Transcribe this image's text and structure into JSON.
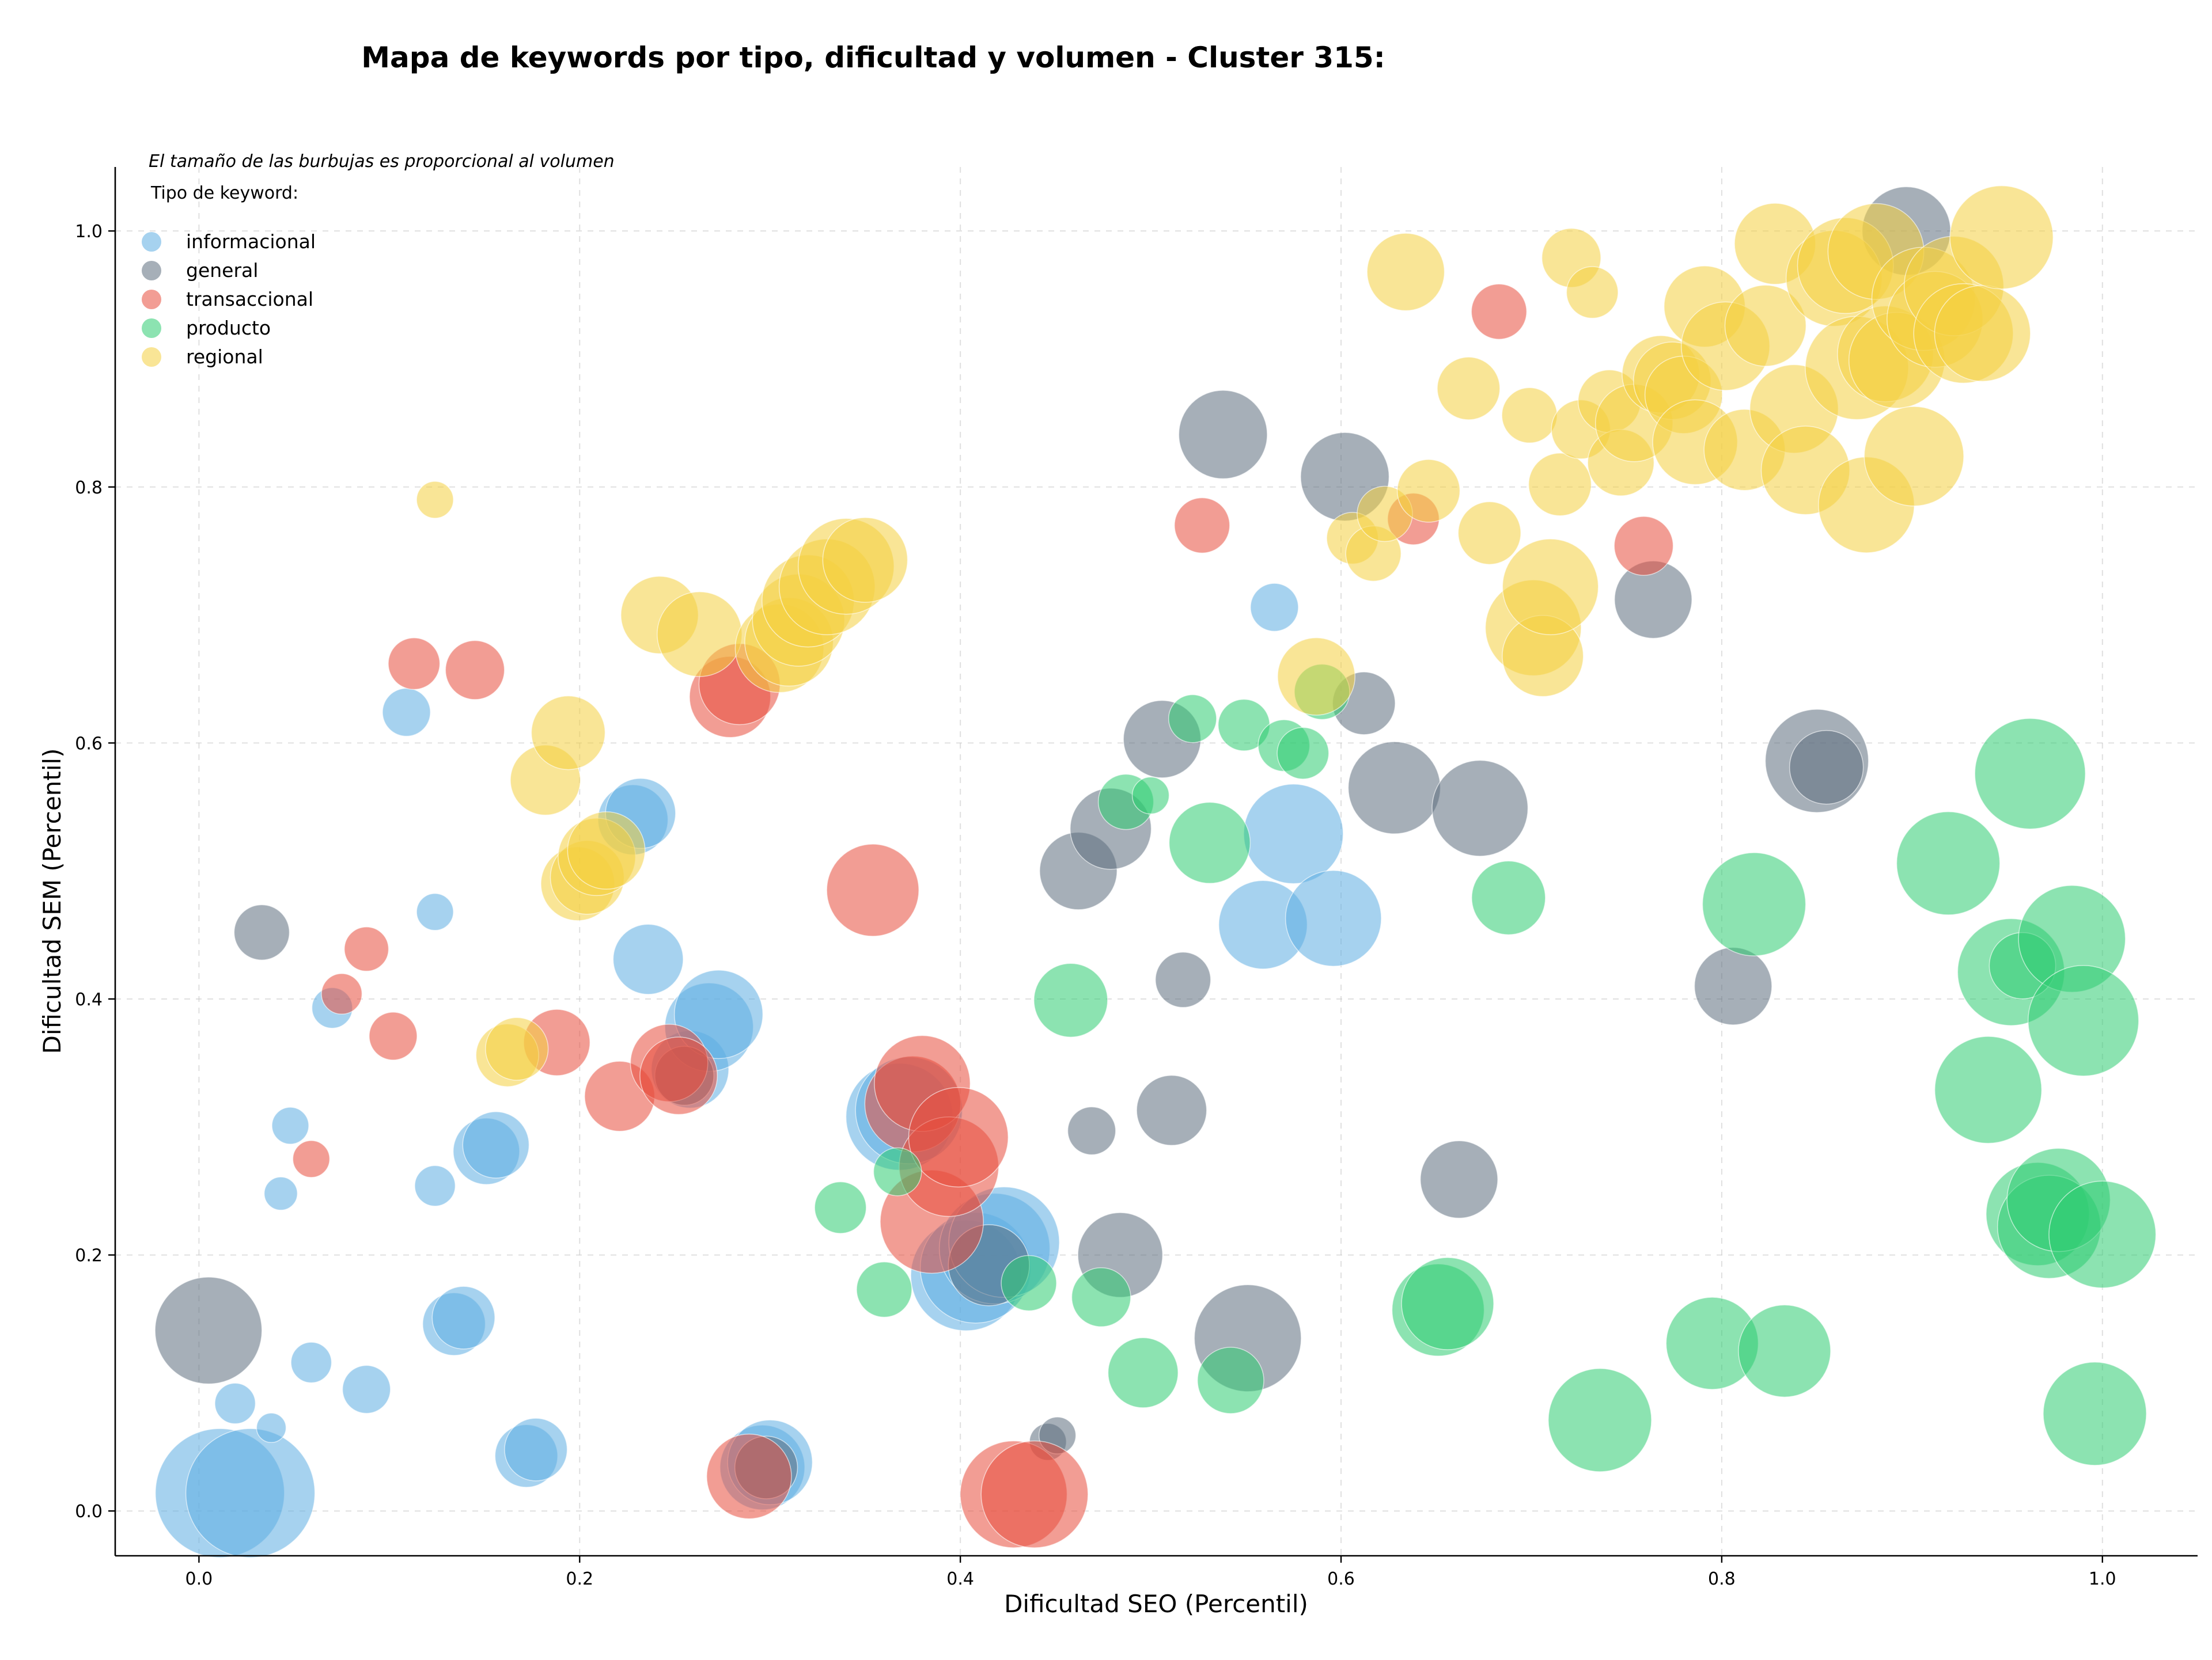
{
  "chart_data": {
    "type": "scatter",
    "title": "Mapa de keywords por tipo, dificultad y volumen - Cluster 315:",
    "xlabel": "Dificultad SEO (Percentil)",
    "ylabel": "Dificultad SEM (Percentil)",
    "xlim": [
      -0.044,
      1.05
    ],
    "ylim": [
      -0.035,
      1.05
    ],
    "xticks": [
      0.0,
      0.2,
      0.4,
      0.6,
      0.8,
      1.0
    ],
    "yticks": [
      0.0,
      0.2,
      0.4,
      0.6,
      0.8,
      1.0
    ],
    "xtick_labels": [
      "0.0",
      "0.2",
      "0.4",
      "0.6",
      "0.8",
      "1.0"
    ],
    "ytick_labels": [
      "0.0",
      "0.2",
      "0.4",
      "0.6",
      "0.8",
      "1.0"
    ],
    "grid": true,
    "legend_title": "Tipo de keyword:",
    "legend_position": "top-left",
    "note": "El tamaño de las burbujas es proporcional al volumen",
    "series": [
      {
        "name": "informacional",
        "color": "#5DADE2",
        "points": [
          [
            0.011,
            0.014,
            35
          ],
          [
            0.027,
            0.014,
            35
          ],
          [
            0.019,
            0.084,
            11
          ],
          [
            0.059,
            0.116,
            11
          ],
          [
            0.088,
            0.095,
            13
          ],
          [
            0.038,
            0.065,
            8
          ],
          [
            0.043,
            0.248,
            9
          ],
          [
            0.048,
            0.301,
            10
          ],
          [
            0.07,
            0.393,
            11
          ],
          [
            0.109,
            0.624,
            13
          ],
          [
            0.124,
            0.254,
            11
          ],
          [
            0.124,
            0.468,
            10
          ],
          [
            0.134,
            0.146,
            17
          ],
          [
            0.139,
            0.151,
            17
          ],
          [
            0.151,
            0.281,
            18
          ],
          [
            0.156,
            0.286,
            18
          ],
          [
            0.172,
            0.043,
            17
          ],
          [
            0.177,
            0.048,
            17
          ],
          [
            0.228,
            0.54,
            19
          ],
          [
            0.232,
            0.545,
            19
          ],
          [
            0.236,
            0.431,
            19
          ],
          [
            0.258,
            0.345,
            21
          ],
          [
            0.268,
            0.378,
            24
          ],
          [
            0.273,
            0.388,
            24
          ],
          [
            0.296,
            0.034,
            23
          ],
          [
            0.3,
            0.038,
            23
          ],
          [
            0.368,
            0.308,
            29
          ],
          [
            0.373,
            0.313,
            29
          ],
          [
            0.403,
            0.184,
            30
          ],
          [
            0.408,
            0.19,
            30
          ],
          [
            0.418,
            0.205,
            30
          ],
          [
            0.423,
            0.21,
            30
          ],
          [
            0.559,
            0.458,
            24
          ],
          [
            0.565,
            0.706,
            13
          ],
          [
            0.575,
            0.529,
            27
          ],
          [
            0.596,
            0.463,
            26
          ]
        ]
      },
      {
        "name": "general",
        "color": "#5D6D7E",
        "points": [
          [
            0.005,
            0.141,
            29
          ],
          [
            0.033,
            0.452,
            15
          ],
          [
            0.255,
            0.34,
            16
          ],
          [
            0.298,
            0.034,
            17
          ],
          [
            0.415,
            0.192,
            22
          ],
          [
            0.446,
            0.054,
            10
          ],
          [
            0.451,
            0.059,
            10
          ],
          [
            0.462,
            0.5,
            21
          ],
          [
            0.469,
            0.297,
            13
          ],
          [
            0.479,
            0.533,
            22
          ],
          [
            0.484,
            0.2,
            23
          ],
          [
            0.506,
            0.603,
            21
          ],
          [
            0.511,
            0.313,
            19
          ],
          [
            0.517,
            0.415,
            15
          ],
          [
            0.538,
            0.841,
            24
          ],
          [
            0.551,
            0.135,
            29
          ],
          [
            0.602,
            0.808,
            24
          ],
          [
            0.612,
            0.631,
            17
          ],
          [
            0.628,
            0.565,
            25
          ],
          [
            0.662,
            0.259,
            21
          ],
          [
            0.673,
            0.549,
            26
          ],
          [
            0.764,
            0.712,
            21
          ],
          [
            0.806,
            0.41,
            21
          ],
          [
            0.85,
            0.586,
            28
          ],
          [
            0.855,
            0.581,
            20
          ],
          [
            0.897,
            1.0,
            24
          ]
        ]
      },
      {
        "name": "transaccional",
        "color": "#E74C3C",
        "points": [
          [
            0.059,
            0.275,
            10
          ],
          [
            0.075,
            0.404,
            11
          ],
          [
            0.088,
            0.439,
            12
          ],
          [
            0.102,
            0.371,
            13
          ],
          [
            0.113,
            0.662,
            14
          ],
          [
            0.145,
            0.657,
            16
          ],
          [
            0.188,
            0.366,
            18
          ],
          [
            0.221,
            0.324,
            19
          ],
          [
            0.247,
            0.35,
            21
          ],
          [
            0.252,
            0.34,
            21
          ],
          [
            0.279,
            0.636,
            22
          ],
          [
            0.284,
            0.646,
            22
          ],
          [
            0.289,
            0.027,
            23
          ],
          [
            0.354,
            0.485,
            25
          ],
          [
            0.375,
            0.318,
            26
          ],
          [
            0.38,
            0.334,
            26
          ],
          [
            0.385,
            0.226,
            28
          ],
          [
            0.394,
            0.269,
            27
          ],
          [
            0.399,
            0.292,
            27
          ],
          [
            0.428,
            0.013,
            29
          ],
          [
            0.439,
            0.013,
            29
          ],
          [
            0.527,
            0.77,
            15
          ],
          [
            0.638,
            0.775,
            14
          ],
          [
            0.683,
            0.937,
            15
          ],
          [
            0.759,
            0.754,
            16
          ]
        ]
      },
      {
        "name": "producto",
        "color": "#2ECC71",
        "points": [
          [
            0.337,
            0.237,
            14
          ],
          [
            0.36,
            0.173,
            15
          ],
          [
            0.367,
            0.265,
            13
          ],
          [
            0.436,
            0.178,
            15
          ],
          [
            0.458,
            0.399,
            20
          ],
          [
            0.474,
            0.167,
            16
          ],
          [
            0.487,
            0.554,
            15
          ],
          [
            0.496,
            0.108,
            19
          ],
          [
            0.5,
            0.559,
            10
          ],
          [
            0.522,
            0.619,
            13
          ],
          [
            0.531,
            0.522,
            22
          ],
          [
            0.542,
            0.102,
            18
          ],
          [
            0.549,
            0.614,
            14
          ],
          [
            0.57,
            0.598,
            14
          ],
          [
            0.58,
            0.592,
            14
          ],
          [
            0.59,
            0.64,
            15
          ],
          [
            0.651,
            0.157,
            25
          ],
          [
            0.656,
            0.162,
            25
          ],
          [
            0.688,
            0.479,
            20
          ],
          [
            0.736,
            0.071,
            28
          ],
          [
            0.795,
            0.131,
            25
          ],
          [
            0.817,
            0.474,
            28
          ],
          [
            0.833,
            0.125,
            25
          ],
          [
            0.919,
            0.506,
            28
          ],
          [
            0.94,
            0.329,
            29
          ],
          [
            0.952,
            0.421,
            29
          ],
          [
            0.958,
            0.426,
            18
          ],
          [
            0.962,
            0.576,
            30
          ],
          [
            0.966,
            0.232,
            28
          ],
          [
            0.972,
            0.222,
            28
          ],
          [
            0.977,
            0.243,
            28
          ],
          [
            0.984,
            0.447,
            29
          ],
          [
            0.99,
            0.383,
            30
          ],
          [
            0.996,
            0.076,
            28
          ],
          [
            1.0,
            0.216,
            29
          ]
        ]
      },
      {
        "name": "regional",
        "color": "#F4D03F",
        "points": [
          [
            0.124,
            0.79,
            10
          ],
          [
            0.162,
            0.356,
            17
          ],
          [
            0.167,
            0.361,
            17
          ],
          [
            0.182,
            0.571,
            19
          ],
          [
            0.194,
            0.608,
            20
          ],
          [
            0.199,
            0.49,
            20
          ],
          [
            0.204,
            0.495,
            20
          ],
          [
            0.209,
            0.511,
            21
          ],
          [
            0.214,
            0.516,
            21
          ],
          [
            0.242,
            0.7,
            21
          ],
          [
            0.263,
            0.685,
            23
          ],
          [
            0.305,
            0.674,
            24
          ],
          [
            0.31,
            0.679,
            24
          ],
          [
            0.315,
            0.696,
            25
          ],
          [
            0.32,
            0.711,
            25
          ],
          [
            0.33,
            0.722,
            26
          ],
          [
            0.34,
            0.738,
            26
          ],
          [
            0.35,
            0.743,
            23
          ],
          [
            0.587,
            0.652,
            21
          ],
          [
            0.606,
            0.76,
            14
          ],
          [
            0.617,
            0.748,
            15
          ],
          [
            0.623,
            0.779,
            15
          ],
          [
            0.634,
            0.968,
            21
          ],
          [
            0.646,
            0.797,
            17
          ],
          [
            0.667,
            0.877,
            17
          ],
          [
            0.678,
            0.764,
            17
          ],
          [
            0.699,
            0.856,
            15
          ],
          [
            0.701,
            0.69,
            26
          ],
          [
            0.706,
            0.668,
            22
          ],
          [
            0.71,
            0.722,
            26
          ],
          [
            0.715,
            0.802,
            17
          ],
          [
            0.721,
            0.979,
            16
          ],
          [
            0.726,
            0.845,
            16
          ],
          [
            0.732,
            0.952,
            14
          ],
          [
            0.741,
            0.867,
            17
          ],
          [
            0.747,
            0.819,
            18
          ],
          [
            0.754,
            0.85,
            21
          ],
          [
            0.768,
            0.888,
            21
          ],
          [
            0.774,
            0.883,
            21
          ],
          [
            0.78,
            0.872,
            21
          ],
          [
            0.786,
            0.835,
            23
          ],
          [
            0.791,
            0.941,
            22
          ],
          [
            0.802,
            0.91,
            24
          ],
          [
            0.812,
            0.829,
            22
          ],
          [
            0.823,
            0.926,
            22
          ],
          [
            0.828,
            0.99,
            22
          ],
          [
            0.838,
            0.861,
            24
          ],
          [
            0.844,
            0.813,
            24
          ],
          [
            0.859,
            0.963,
            26
          ],
          [
            0.865,
            0.973,
            26
          ],
          [
            0.871,
            0.893,
            28
          ],
          [
            0.876,
            0.786,
            26
          ],
          [
            0.881,
            0.984,
            26
          ],
          [
            0.886,
            0.904,
            26
          ],
          [
            0.892,
            0.899,
            26
          ],
          [
            0.901,
            0.824,
            27
          ],
          [
            0.906,
            0.947,
            28
          ],
          [
            0.912,
            0.931,
            26
          ],
          [
            0.922,
            0.957,
            27
          ],
          [
            0.927,
            0.92,
            27
          ],
          [
            0.937,
            0.92,
            26
          ],
          [
            0.947,
            0.995,
            28
          ]
        ]
      }
    ]
  }
}
